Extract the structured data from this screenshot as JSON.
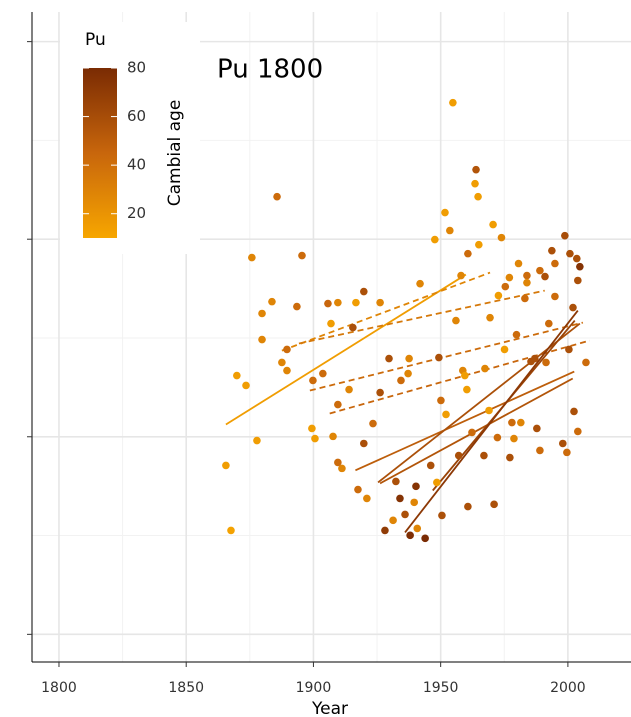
{
  "chart_data": {
    "type": "scatter",
    "annotation": "Pu 1800",
    "x_label": "Year",
    "xlim": [
      1789.4,
      2024.8
    ],
    "xticks": [
      1800,
      1850,
      1900,
      1950,
      2000
    ],
    "xminor": [
      1825,
      1875,
      1925,
      1975
    ],
    "ylim": [
      -0.14,
      3.15
    ],
    "yticks": [
      0,
      1,
      2,
      3
    ],
    "yminor": [
      0.5,
      1.5,
      2.5
    ],
    "grid": true,
    "legend": {
      "title": "Pu",
      "color_label": "Cambial age",
      "limits": [
        10,
        80
      ],
      "ticks": [
        20,
        40,
        60,
        80
      ],
      "colors": [
        "#f7a600",
        "#c8660c",
        "#7a2b03"
      ],
      "position": "top-left"
    },
    "points": {
      "x": [
        1865.6,
        1867.6,
        1869.9,
        1873.5,
        1875.8,
        1877.8,
        1879.8,
        1879.8,
        1883.7,
        1885.7,
        1887.6,
        1889.6,
        1889.6,
        1893.5,
        1895.5,
        1899.4,
        1900.6,
        1899.8,
        1903.7,
        1906.9,
        1905.7,
        1907.7,
        1909.6,
        1909.6,
        1911.2,
        1909.6,
        1914.0,
        1915.5,
        1916.7,
        1917.5,
        1919.8,
        1919.8,
        1921.0,
        1923.4,
        1926.2,
        1926.2,
        1928.1,
        1929.7,
        1931.3,
        1932.4,
        1934.4,
        1934.0,
        1936.0,
        1937.2,
        1938.0,
        1937.6,
        1939.6,
        1940.3,
        1941.9,
        1943.9,
        1940.8,
        1946.1,
        1947.7,
        1948.5,
        1949.3,
        1950.1,
        1950.5,
        1951.7,
        1952.1,
        1953.6,
        1954.8,
        1956.0,
        1957.1,
        1958.0,
        1958.7,
        1959.5,
        1960.3,
        1960.7,
        1960.7,
        1962.3,
        1963.9,
        1963.5,
        1964.7,
        1965.0,
        1967.0,
        1967.4,
        1969.0,
        1969.4,
        1970.6,
        1971.0,
        1972.3,
        1972.7,
        1973.9,
        1975.1,
        1975.4,
        1977.0,
        1977.2,
        1978.0,
        1978.8,
        1979.8,
        1980.6,
        1981.5,
        1983.1,
        1983.9,
        1983.9,
        1985.5,
        1987.0,
        1987.8,
        1989.0,
        1989.0,
        1991.0,
        1991.4,
        1992.5,
        1993.7,
        1994.9,
        1994.9,
        1998.0,
        1998.8,
        1999.6,
        2000.4,
        2000.8,
        2002.0,
        2002.4,
        2003.5,
        2003.9,
        2003.9,
        2004.7,
        2007.1
      ],
      "y": [
        0.855,
        0.526,
        1.31,
        1.26,
        1.907,
        0.981,
        1.624,
        1.492,
        1.684,
        2.215,
        1.376,
        1.335,
        1.442,
        1.659,
        1.917,
        1.042,
        0.991,
        1.285,
        1.32,
        1.573,
        1.674,
        1.002,
        1.679,
        0.87,
        0.84,
        1.163,
        1.239,
        1.553,
        1.679,
        0.733,
        0.966,
        1.735,
        0.688,
        1.067,
        1.679,
        1.224,
        0.526,
        1.396,
        0.577,
        0.774,
        1.285,
        0.688,
        0.607,
        1.32,
        0.501,
        1.396,
        0.668,
        0.749,
        1.775,
        0.486,
        0.536,
        0.855,
        1.998,
        0.769,
        1.401,
        1.184,
        0.602,
        2.135,
        1.113,
        2.044,
        2.691,
        1.588,
        0.905,
        1.816,
        1.335,
        1.31,
        1.239,
        0.647,
        1.927,
        1.022,
        2.352,
        2.281,
        2.215,
        1.972,
        0.905,
        1.345,
        1.133,
        1.603,
        2.074,
        0.658,
        0.996,
        1.715,
        2.008,
        1.442,
        1.76,
        1.806,
        0.895,
        1.072,
        0.991,
        1.517,
        1.877,
        1.072,
        1.7,
        1.816,
        1.78,
        1.381,
        1.396,
        1.042,
        0.931,
        1.841,
        1.811,
        1.376,
        1.573,
        1.942,
        1.877,
        1.71,
        0.966,
        2.018,
        0.921,
        1.442,
        1.927,
        1.654,
        1.128,
        1.902,
        1.791,
        1.027,
        1.861,
        1.376
      ],
      "age": [
        15,
        12,
        15,
        15,
        28,
        15,
        28,
        28,
        28,
        42,
        28,
        28,
        42,
        42,
        42,
        15,
        15,
        42,
        42,
        15,
        45,
        28,
        28,
        42,
        28,
        42,
        28,
        58,
        15,
        42,
        58,
        58,
        28,
        42,
        28,
        58,
        70,
        58,
        28,
        58,
        42,
        75,
        58,
        28,
        78,
        28,
        28,
        75,
        28,
        80,
        28,
        58,
        15,
        15,
        58,
        42,
        58,
        15,
        15,
        28,
        15,
        28,
        58,
        28,
        28,
        15,
        15,
        58,
        42,
        42,
        55,
        15,
        15,
        15,
        58,
        28,
        15,
        28,
        15,
        58,
        42,
        15,
        28,
        15,
        42,
        28,
        58,
        42,
        28,
        42,
        28,
        28,
        42,
        42,
        28,
        58,
        58,
        58,
        42,
        42,
        58,
        42,
        42,
        58,
        42,
        42,
        58,
        60,
        42,
        58,
        58,
        58,
        58,
        58,
        58,
        42,
        75,
        42
      ]
    },
    "lines": [
      {
        "x": [
          1865.6,
          1959.9
        ],
        "y": [
          1.062,
          1.821
        ],
        "age": 15,
        "style": "solid"
      },
      {
        "x": [
          1887.6,
          1969.4
        ],
        "y": [
          1.436,
          1.831
        ],
        "age": 28,
        "style": "dashed"
      },
      {
        "x": [
          1894.3,
          1990.9
        ],
        "y": [
          1.472,
          1.74
        ],
        "age": 35,
        "style": "dashed"
      },
      {
        "x": [
          1898.6,
          2005.9
        ],
        "y": [
          1.234,
          1.578
        ],
        "age": 42,
        "style": "dashed"
      },
      {
        "x": [
          1906.4,
          2008.6
        ],
        "y": [
          1.118,
          1.487
        ],
        "age": 45,
        "style": "dashed"
      },
      {
        "x": [
          1916.5,
          2002.5
        ],
        "y": [
          0.83,
          1.33
        ],
        "age": 50,
        "style": "solid"
      },
      {
        "x": [
          1926.2,
          2001.9
        ],
        "y": [
          0.764,
          1.295
        ],
        "age": 55,
        "style": "solid"
      },
      {
        "x": [
          1925.4,
          2004.7
        ],
        "y": [
          0.769,
          1.573
        ],
        "age": 58,
        "style": "solid"
      },
      {
        "x": [
          1946.9,
          2002.7
        ],
        "y": [
          0.728,
          1.588
        ],
        "age": 65,
        "style": "solid"
      },
      {
        "x": [
          1936.0,
          2003.9
        ],
        "y": [
          0.516,
          1.639
        ],
        "age": 72,
        "style": "solid"
      }
    ]
  }
}
